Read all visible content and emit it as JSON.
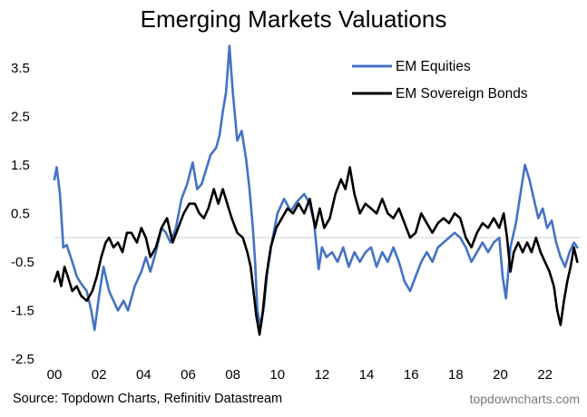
{
  "chart_data": {
    "type": "line",
    "title": "Emerging Markets Valuations",
    "xlabel": "",
    "ylabel": "",
    "xlim": [
      2000.0,
      2023.6
    ],
    "ylim": [
      -2.5,
      4.0
    ],
    "x_ticks": [
      "00",
      "02",
      "04",
      "06",
      "08",
      "10",
      "12",
      "14",
      "16",
      "18",
      "20",
      "22"
    ],
    "y_ticks": [
      "3.5",
      "2.5",
      "1.5",
      "0.5",
      "-0.5",
      "-1.5",
      "-2.5"
    ],
    "zero_line": true,
    "grid": false,
    "legend_position": "top-right",
    "series": [
      {
        "name": "EM Equities",
        "color": "#4472c4",
        "points": [
          [
            2000.0,
            1.2
          ],
          [
            2000.1,
            1.45
          ],
          [
            2000.25,
            0.9
          ],
          [
            2000.4,
            -0.2
          ],
          [
            2000.55,
            -0.15
          ],
          [
            2000.8,
            -0.5
          ],
          [
            2001.0,
            -0.8
          ],
          [
            2001.2,
            -0.95
          ],
          [
            2001.45,
            -1.1
          ],
          [
            2001.65,
            -1.5
          ],
          [
            2001.8,
            -1.9
          ],
          [
            2002.0,
            -1.2
          ],
          [
            2002.2,
            -0.6
          ],
          [
            2002.45,
            -1.1
          ],
          [
            2002.65,
            -1.3
          ],
          [
            2002.85,
            -1.5
          ],
          [
            2003.1,
            -1.3
          ],
          [
            2003.3,
            -1.5
          ],
          [
            2003.6,
            -1.0
          ],
          [
            2003.9,
            -0.7
          ],
          [
            2004.1,
            -0.4
          ],
          [
            2004.3,
            -0.7
          ],
          [
            2004.55,
            -0.3
          ],
          [
            2004.8,
            0.2
          ],
          [
            2005.0,
            0.1
          ],
          [
            2005.2,
            -0.1
          ],
          [
            2005.45,
            0.2
          ],
          [
            2005.7,
            0.8
          ],
          [
            2005.95,
            1.1
          ],
          [
            2006.2,
            1.55
          ],
          [
            2006.4,
            1.0
          ],
          [
            2006.6,
            1.1
          ],
          [
            2006.8,
            1.4
          ],
          [
            2007.0,
            1.7
          ],
          [
            2007.25,
            1.85
          ],
          [
            2007.4,
            2.1
          ],
          [
            2007.55,
            2.6
          ],
          [
            2007.7,
            3.0
          ],
          [
            2007.85,
            3.95
          ],
          [
            2008.0,
            3.0
          ],
          [
            2008.2,
            2.0
          ],
          [
            2008.4,
            2.2
          ],
          [
            2008.6,
            1.6
          ],
          [
            2008.75,
            1.0
          ],
          [
            2008.9,
            0.2
          ],
          [
            2009.0,
            -0.5
          ],
          [
            2009.1,
            -1.5
          ],
          [
            2009.25,
            -1.85
          ],
          [
            2009.4,
            -1.4
          ],
          [
            2009.55,
            -0.7
          ],
          [
            2009.75,
            -0.1
          ],
          [
            2010.0,
            0.5
          ],
          [
            2010.3,
            0.8
          ],
          [
            2010.6,
            0.55
          ],
          [
            2010.9,
            0.75
          ],
          [
            2011.2,
            0.9
          ],
          [
            2011.45,
            0.7
          ],
          [
            2011.65,
            0.3
          ],
          [
            2011.85,
            -0.65
          ],
          [
            2012.0,
            -0.2
          ],
          [
            2012.2,
            -0.4
          ],
          [
            2012.45,
            -0.3
          ],
          [
            2012.7,
            -0.5
          ],
          [
            2012.95,
            -0.2
          ],
          [
            2013.2,
            -0.6
          ],
          [
            2013.45,
            -0.3
          ],
          [
            2013.7,
            -0.5
          ],
          [
            2013.95,
            -0.3
          ],
          [
            2014.2,
            -0.2
          ],
          [
            2014.45,
            -0.6
          ],
          [
            2014.7,
            -0.3
          ],
          [
            2014.95,
            -0.5
          ],
          [
            2015.2,
            -0.2
          ],
          [
            2015.45,
            -0.5
          ],
          [
            2015.7,
            -0.9
          ],
          [
            2015.95,
            -1.1
          ],
          [
            2016.2,
            -0.8
          ],
          [
            2016.45,
            -0.5
          ],
          [
            2016.7,
            -0.3
          ],
          [
            2016.95,
            -0.5
          ],
          [
            2017.2,
            -0.2
          ],
          [
            2017.45,
            -0.1
          ],
          [
            2017.7,
            0.0
          ],
          [
            2017.95,
            0.1
          ],
          [
            2018.2,
            0.0
          ],
          [
            2018.45,
            -0.2
          ],
          [
            2018.7,
            -0.5
          ],
          [
            2018.95,
            -0.3
          ],
          [
            2019.2,
            -0.1
          ],
          [
            2019.45,
            -0.3
          ],
          [
            2019.7,
            -0.1
          ],
          [
            2019.95,
            0.0
          ],
          [
            2020.1,
            -0.8
          ],
          [
            2020.25,
            -1.25
          ],
          [
            2020.45,
            -0.2
          ],
          [
            2020.7,
            0.3
          ],
          [
            2020.9,
            0.9
          ],
          [
            2021.1,
            1.5
          ],
          [
            2021.3,
            1.2
          ],
          [
            2021.5,
            0.8
          ],
          [
            2021.7,
            0.4
          ],
          [
            2021.9,
            0.6
          ],
          [
            2022.1,
            0.2
          ],
          [
            2022.3,
            0.35
          ],
          [
            2022.5,
            -0.1
          ],
          [
            2022.7,
            -0.4
          ],
          [
            2022.9,
            -0.6
          ],
          [
            2023.1,
            -0.3
          ],
          [
            2023.3,
            -0.1
          ],
          [
            2023.45,
            -0.2
          ]
        ]
      },
      {
        "name": "EM Sovereign Bonds",
        "color": "#000000",
        "points": [
          [
            2000.0,
            -0.9
          ],
          [
            2000.15,
            -0.7
          ],
          [
            2000.3,
            -1.0
          ],
          [
            2000.45,
            -0.6
          ],
          [
            2000.6,
            -0.8
          ],
          [
            2000.8,
            -1.1
          ],
          [
            2001.0,
            -1.0
          ],
          [
            2001.2,
            -1.2
          ],
          [
            2001.45,
            -1.3
          ],
          [
            2001.7,
            -1.1
          ],
          [
            2001.9,
            -0.8
          ],
          [
            2002.1,
            -0.4
          ],
          [
            2002.3,
            -0.1
          ],
          [
            2002.45,
            0.0
          ],
          [
            2002.65,
            -0.2
          ],
          [
            2002.85,
            -0.1
          ],
          [
            2003.05,
            -0.3
          ],
          [
            2003.25,
            0.1
          ],
          [
            2003.45,
            0.1
          ],
          [
            2003.7,
            -0.1
          ],
          [
            2003.9,
            0.2
          ],
          [
            2004.1,
            0.0
          ],
          [
            2004.3,
            -0.4
          ],
          [
            2004.55,
            -0.2
          ],
          [
            2004.8,
            0.2
          ],
          [
            2005.05,
            0.4
          ],
          [
            2005.3,
            -0.1
          ],
          [
            2005.55,
            0.2
          ],
          [
            2005.8,
            0.5
          ],
          [
            2006.05,
            0.7
          ],
          [
            2006.3,
            0.7
          ],
          [
            2006.5,
            0.5
          ],
          [
            2006.7,
            0.4
          ],
          [
            2006.9,
            0.6
          ],
          [
            2007.15,
            1.0
          ],
          [
            2007.35,
            0.7
          ],
          [
            2007.55,
            1.0
          ],
          [
            2007.75,
            0.7
          ],
          [
            2007.95,
            0.4
          ],
          [
            2008.2,
            0.1
          ],
          [
            2008.45,
            0.0
          ],
          [
            2008.65,
            -0.3
          ],
          [
            2008.8,
            -0.6
          ],
          [
            2008.95,
            -1.2
          ],
          [
            2009.05,
            -1.6
          ],
          [
            2009.2,
            -2.0
          ],
          [
            2009.35,
            -1.5
          ],
          [
            2009.5,
            -0.8
          ],
          [
            2009.7,
            -0.2
          ],
          [
            2009.95,
            0.2
          ],
          [
            2010.2,
            0.4
          ],
          [
            2010.45,
            0.6
          ],
          [
            2010.7,
            0.5
          ],
          [
            2010.95,
            0.7
          ],
          [
            2011.2,
            0.5
          ],
          [
            2011.45,
            0.8
          ],
          [
            2011.7,
            0.2
          ],
          [
            2011.9,
            0.6
          ],
          [
            2012.1,
            0.2
          ],
          [
            2012.35,
            0.4
          ],
          [
            2012.6,
            0.9
          ],
          [
            2012.85,
            1.2
          ],
          [
            2013.05,
            1.0
          ],
          [
            2013.25,
            1.45
          ],
          [
            2013.45,
            0.9
          ],
          [
            2013.7,
            0.5
          ],
          [
            2013.95,
            0.7
          ],
          [
            2014.2,
            0.6
          ],
          [
            2014.45,
            0.5
          ],
          [
            2014.7,
            0.8
          ],
          [
            2014.95,
            0.5
          ],
          [
            2015.2,
            0.4
          ],
          [
            2015.45,
            0.6
          ],
          [
            2015.7,
            0.3
          ],
          [
            2015.95,
            0.0
          ],
          [
            2016.2,
            0.1
          ],
          [
            2016.45,
            0.5
          ],
          [
            2016.7,
            0.3
          ],
          [
            2016.95,
            0.1
          ],
          [
            2017.2,
            0.3
          ],
          [
            2017.45,
            0.4
          ],
          [
            2017.7,
            0.3
          ],
          [
            2017.95,
            0.5
          ],
          [
            2018.2,
            0.4
          ],
          [
            2018.45,
            0.0
          ],
          [
            2018.7,
            -0.2
          ],
          [
            2018.95,
            0.1
          ],
          [
            2019.2,
            0.3
          ],
          [
            2019.45,
            0.2
          ],
          [
            2019.7,
            0.4
          ],
          [
            2019.95,
            0.2
          ],
          [
            2020.15,
            0.5
          ],
          [
            2020.3,
            0.0
          ],
          [
            2020.45,
            -0.7
          ],
          [
            2020.6,
            -0.3
          ],
          [
            2020.8,
            -0.1
          ],
          [
            2021.0,
            -0.3
          ],
          [
            2021.2,
            -0.1
          ],
          [
            2021.4,
            -0.3
          ],
          [
            2021.6,
            0.0
          ],
          [
            2021.8,
            -0.3
          ],
          [
            2022.0,
            -0.5
          ],
          [
            2022.2,
            -0.7
          ],
          [
            2022.4,
            -1.0
          ],
          [
            2022.55,
            -1.5
          ],
          [
            2022.7,
            -1.8
          ],
          [
            2022.85,
            -1.3
          ],
          [
            2023.0,
            -0.9
          ],
          [
            2023.15,
            -0.6
          ],
          [
            2023.3,
            -0.2
          ],
          [
            2023.45,
            -0.5
          ]
        ]
      }
    ]
  },
  "source": "Source: Topdown Charts, Refinitiv Datastream",
  "watermark": "topdowncharts.com"
}
